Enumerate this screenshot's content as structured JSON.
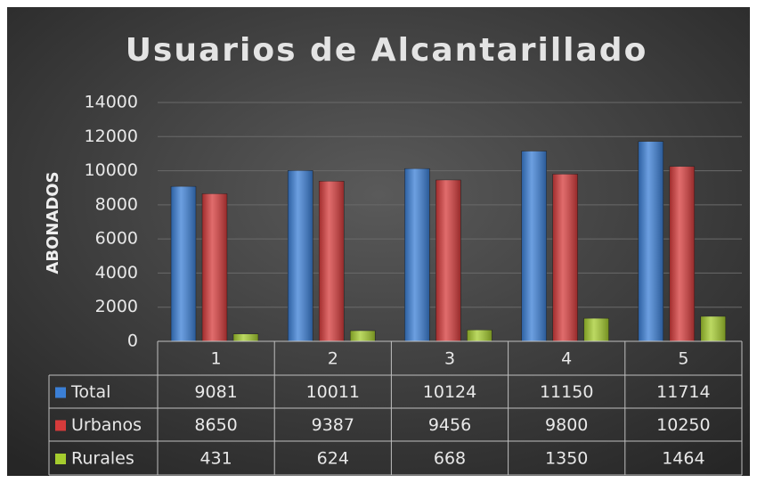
{
  "chart_data": {
    "type": "bar",
    "title": "Usuarios de Alcantarillado",
    "y_label": "ABONADOS",
    "categories": [
      "1",
      "2",
      "3",
      "4",
      "5"
    ],
    "series": [
      {
        "name": "Total",
        "color": "#3b7fd6",
        "values": [
          9081,
          10011,
          10124,
          11150,
          11714
        ]
      },
      {
        "name": "Urbanos",
        "color": "#d63b3b",
        "values": [
          8650,
          9387,
          9456,
          9800,
          10250
        ]
      },
      {
        "name": "Rurales",
        "color": "#a5cc2e",
        "values": [
          431,
          624,
          668,
          1350,
          1464
        ]
      }
    ],
    "ylim": [
      0,
      14000
    ],
    "yticks": [
      0,
      2000,
      4000,
      6000,
      8000,
      10000,
      12000,
      14000
    ],
    "grid": true
  }
}
